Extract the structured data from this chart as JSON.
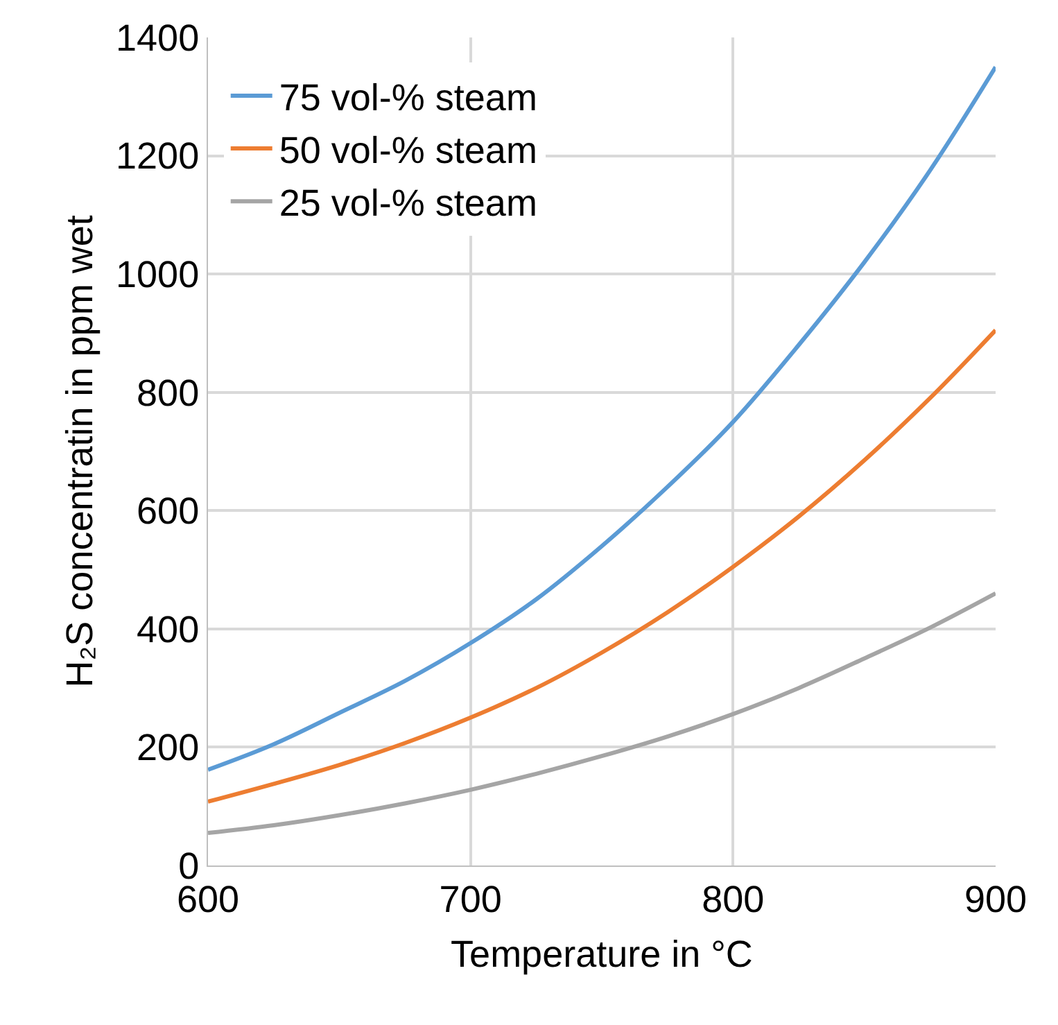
{
  "chart_data": {
    "type": "line",
    "xlabel": "Temperature in °C",
    "ylabel": "H₂S concentratin in ppm wet",
    "x": [
      600,
      625,
      650,
      675,
      700,
      725,
      750,
      775,
      800,
      825,
      850,
      875,
      900
    ],
    "series": [
      {
        "name": "75 vol-% steam",
        "color": "#5b9bd5",
        "values": [
          162,
          205,
          258,
          312,
          376,
          450,
          540,
          640,
          750,
          880,
          1020,
          1175,
          1350
        ]
      },
      {
        "name": "50 vol-% steam",
        "color": "#ed7d31",
        "values": [
          108,
          138,
          170,
          207,
          250,
          300,
          360,
          428,
          505,
          590,
          685,
          790,
          905
        ]
      },
      {
        "name": "25 vol-% steam",
        "color": "#a5a5a5",
        "values": [
          55,
          68,
          85,
          105,
          128,
          155,
          185,
          218,
          256,
          300,
          350,
          402,
          460
        ]
      }
    ],
    "xlim": [
      600,
      900
    ],
    "xticks": [
      600,
      700,
      800,
      900
    ],
    "ylim": [
      0,
      1400
    ],
    "yticks": [
      0,
      200,
      400,
      600,
      800,
      1000,
      1200,
      1400
    ],
    "grid": true,
    "legend": "top left",
    "marker": "none",
    "line_style": "solid"
  }
}
